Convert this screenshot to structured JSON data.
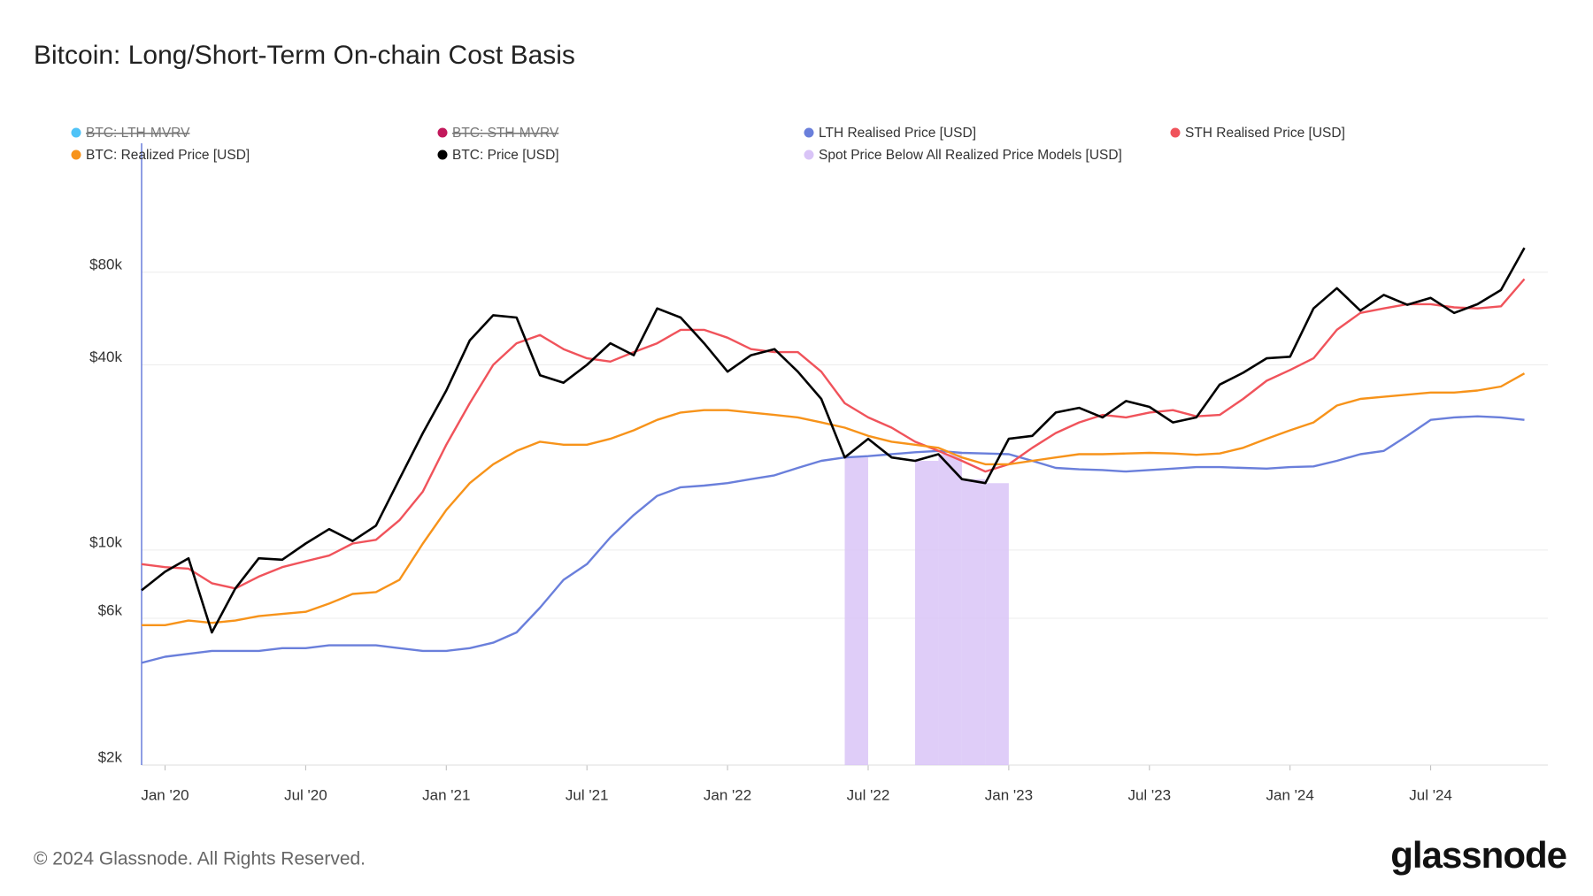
{
  "chart_data": {
    "type": "line",
    "title": "Bitcoin: Long/Short-Term On-chain Cost Basis",
    "footer": "© 2024 Glassnode. All Rights Reserved.",
    "brand": "glassnode",
    "log_scale": true,
    "grid": true,
    "x": [
      "2019-12",
      "2020-01",
      "2020-02",
      "2020-03",
      "2020-04",
      "2020-05",
      "2020-06",
      "2020-07",
      "2020-08",
      "2020-09",
      "2020-10",
      "2020-11",
      "2020-12",
      "2021-01",
      "2021-02",
      "2021-03",
      "2021-04",
      "2021-05",
      "2021-06",
      "2021-07",
      "2021-08",
      "2021-09",
      "2021-10",
      "2021-11",
      "2021-12",
      "2022-01",
      "2022-02",
      "2022-03",
      "2022-04",
      "2022-05",
      "2022-06",
      "2022-07",
      "2022-08",
      "2022-09",
      "2022-10",
      "2022-11",
      "2022-12",
      "2023-01",
      "2023-02",
      "2023-03",
      "2023-04",
      "2023-05",
      "2023-06",
      "2023-07",
      "2023-08",
      "2023-09",
      "2023-10",
      "2023-11",
      "2023-12",
      "2024-01",
      "2024-02",
      "2024-03",
      "2024-04",
      "2024-05",
      "2024-06",
      "2024-07",
      "2024-08",
      "2024-09",
      "2024-10",
      "2024-11"
    ],
    "xlim": [
      "2019-12",
      "2024-12"
    ],
    "xticks": [
      {
        "value": "2020-01",
        "label": "Jan '20"
      },
      {
        "value": "2020-07",
        "label": "Jul '20"
      },
      {
        "value": "2021-01",
        "label": "Jan '21"
      },
      {
        "value": "2021-07",
        "label": "Jul '21"
      },
      {
        "value": "2022-01",
        "label": "Jan '22"
      },
      {
        "value": "2022-07",
        "label": "Jul '22"
      },
      {
        "value": "2023-01",
        "label": "Jan '23"
      },
      {
        "value": "2023-07",
        "label": "Jul '23"
      },
      {
        "value": "2024-01",
        "label": "Jan '24"
      },
      {
        "value": "2024-07",
        "label": "Jul '24"
      }
    ],
    "ylim": [
      2000,
      210000
    ],
    "yticks": [
      {
        "value": 2000,
        "label": "$2k"
      },
      {
        "value": 6000,
        "label": "$6k"
      },
      {
        "value": 10000,
        "label": "$10k"
      },
      {
        "value": 40000,
        "label": "$40k"
      },
      {
        "value": 80000,
        "label": "$80k"
      }
    ],
    "series": [
      {
        "name": "BTC: LTH-MVRV",
        "color": "#4fc3f7",
        "visible": false
      },
      {
        "name": "BTC: STH-MVRV",
        "color": "#c2185b",
        "visible": false
      },
      {
        "name": "LTH Realised Price [USD]",
        "color": "#6a7fdb",
        "values": [
          4300,
          4500,
          4600,
          4700,
          4700,
          4700,
          4800,
          4800,
          4900,
          4900,
          4900,
          4800,
          4700,
          4700,
          4800,
          5000,
          5400,
          6500,
          8000,
          9000,
          11000,
          13000,
          15000,
          16000,
          16200,
          16500,
          17000,
          17500,
          18500,
          19500,
          20000,
          20200,
          20500,
          20800,
          21000,
          20700,
          20600,
          20500,
          19500,
          18500,
          18300,
          18200,
          18000,
          18200,
          18400,
          18600,
          18600,
          18500,
          18400,
          18600,
          18700,
          19500,
          20500,
          21000,
          23500,
          26500,
          27000,
          27200,
          27000,
          26500
        ]
      },
      {
        "name": "STH Realised Price [USD]",
        "color": "#f0535b",
        "values": [
          9000,
          8800,
          8700,
          7800,
          7500,
          8200,
          8800,
          9200,
          9600,
          10500,
          10800,
          12500,
          15500,
          22000,
          30000,
          40000,
          47000,
          50000,
          45000,
          42000,
          41000,
          44000,
          47000,
          52000,
          52000,
          49000,
          45000,
          44000,
          44000,
          38000,
          30000,
          27000,
          25000,
          22500,
          21000,
          19500,
          18000,
          19000,
          21500,
          24000,
          26000,
          27500,
          27000,
          28000,
          28500,
          27200,
          27500,
          31000,
          35500,
          38500,
          42000,
          52000,
          59000,
          61000,
          63000,
          63000,
          61500,
          61000,
          62000,
          76000
        ]
      },
      {
        "name": "BTC: Realized Price [USD]",
        "color": "#f7931a",
        "values": [
          5700,
          5700,
          5900,
          5800,
          5900,
          6100,
          6200,
          6300,
          6700,
          7200,
          7300,
          8000,
          10500,
          13500,
          16500,
          19000,
          21000,
          22500,
          22000,
          22000,
          23000,
          24500,
          26500,
          28000,
          28500,
          28500,
          28000,
          27500,
          27000,
          26000,
          25000,
          23500,
          22500,
          22000,
          21500,
          20000,
          19000,
          19000,
          19500,
          20000,
          20500,
          20500,
          20600,
          20700,
          20600,
          20400,
          20600,
          21500,
          23000,
          24500,
          26000,
          29500,
          31000,
          31500,
          32000,
          32500,
          32500,
          33000,
          34000,
          37500
        ]
      },
      {
        "name": "BTC: Price [USD]",
        "color": "#000000",
        "values": [
          7400,
          8500,
          9400,
          5400,
          7500,
          9400,
          9300,
          10500,
          11700,
          10700,
          12000,
          17000,
          24000,
          33000,
          48000,
          58000,
          57000,
          37000,
          35000,
          40000,
          47000,
          43000,
          61000,
          57000,
          47000,
          38000,
          43000,
          45000,
          38000,
          31000,
          20000,
          23000,
          20000,
          19500,
          20500,
          17000,
          16500,
          23000,
          23500,
          28000,
          29000,
          27000,
          30500,
          29200,
          26000,
          27000,
          34500,
          37700,
          42000,
          42500,
          61000,
          71000,
          60000,
          67500,
          62700,
          66000,
          59000,
          63000,
          70000,
          96000
        ]
      },
      {
        "name": "Spot Price Below All Realized Price Models [USD]",
        "color": "#d9c4f7",
        "kind": "bar",
        "values": [
          null,
          null,
          null,
          null,
          null,
          null,
          null,
          null,
          null,
          null,
          null,
          null,
          null,
          null,
          null,
          null,
          null,
          null,
          null,
          null,
          null,
          null,
          null,
          null,
          null,
          null,
          null,
          null,
          null,
          null,
          20000,
          null,
          null,
          19500,
          20500,
          17000,
          16500,
          null,
          null,
          null,
          null,
          null,
          null,
          null,
          null,
          null,
          null,
          null,
          null,
          null,
          null,
          null,
          null,
          null,
          null,
          null,
          null,
          null,
          null,
          null
        ]
      }
    ]
  }
}
